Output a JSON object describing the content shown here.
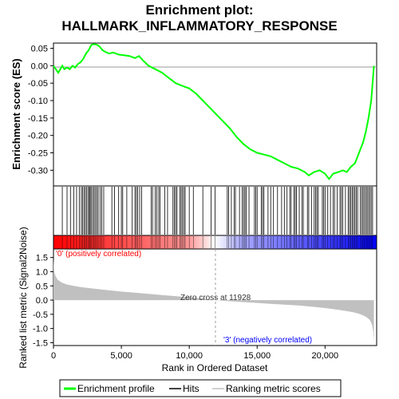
{
  "chart_data": [
    {
      "type": "line",
      "title_line1": "Enrichment plot:",
      "title_line2": "HALLMARK_INFLAMMATORY_RESPONSE",
      "ylabel": "Enrichment score (ES)",
      "ylim": [
        -0.345,
        0.065
      ],
      "xlim": [
        0,
        23800
      ],
      "yticks": [
        "0.05",
        "0.00",
        "-0.05",
        "-0.10",
        "-0.15",
        "-0.20",
        "-0.25",
        "-0.30"
      ],
      "ytick_values": [
        0.05,
        0.0,
        -0.05,
        -0.1,
        -0.15,
        -0.2,
        -0.25,
        -0.3
      ],
      "grid": false,
      "color": "#00ff00",
      "series": [
        {
          "name": "Enrichment profile",
          "x": [
            0,
            350,
            650,
            800,
            1000,
            1200,
            1400,
            1600,
            1800,
            2000,
            2200,
            2400,
            2600,
            2800,
            3000,
            3200,
            3400,
            3600,
            3800,
            4100,
            4400,
            4800,
            5200,
            5600,
            6000,
            6300,
            6600,
            7000,
            7500,
            8000,
            8500,
            9000,
            9500,
            10000,
            10500,
            11000,
            11500,
            12000,
            12500,
            13000,
            13500,
            14000,
            14500,
            15000,
            15500,
            16000,
            16500,
            17000,
            17500,
            18000,
            18500,
            18800,
            19200,
            19600,
            20000,
            20300,
            20600,
            21000,
            21300,
            21600,
            21900,
            22200,
            22500,
            22800,
            23000,
            23200,
            23400,
            23500,
            23600
          ],
          "y": [
            0.0,
            -0.02,
            0.0,
            -0.01,
            -0.005,
            -0.01,
            0.0,
            -0.005,
            0.005,
            0.01,
            0.02,
            0.035,
            0.045,
            0.06,
            0.062,
            0.06,
            0.055,
            0.045,
            0.04,
            0.035,
            0.038,
            0.032,
            0.03,
            0.028,
            0.022,
            0.028,
            0.015,
            0.0,
            -0.01,
            -0.02,
            -0.035,
            -0.05,
            -0.058,
            -0.065,
            -0.08,
            -0.1,
            -0.12,
            -0.14,
            -0.16,
            -0.18,
            -0.205,
            -0.225,
            -0.24,
            -0.25,
            -0.255,
            -0.26,
            -0.27,
            -0.28,
            -0.29,
            -0.295,
            -0.305,
            -0.315,
            -0.305,
            -0.3,
            -0.31,
            -0.325,
            -0.31,
            -0.305,
            -0.3,
            -0.305,
            -0.29,
            -0.28,
            -0.25,
            -0.22,
            -0.19,
            -0.15,
            -0.1,
            -0.05,
            0.0
          ]
        }
      ]
    },
    {
      "type": "hits",
      "series": [
        {
          "name": "Hits",
          "x": [
            650,
            1000,
            1250,
            1500,
            1700,
            1900,
            2050,
            2150,
            2250,
            2350,
            2450,
            2550,
            2650,
            2700,
            2800,
            2900,
            3000,
            3100,
            3200,
            3300,
            3450,
            3550,
            3700,
            4300,
            4500,
            4800,
            5000,
            5100,
            5400,
            5800,
            6000,
            6100,
            6200,
            6350,
            6500,
            7200,
            7300,
            7500,
            7600,
            7750,
            7850,
            8200,
            8400,
            8800,
            8900,
            9000,
            9100,
            9300,
            9400,
            9500,
            9600,
            9700,
            10000,
            10300,
            11000,
            11600,
            11900,
            12800,
            12900,
            13100,
            13300,
            13400,
            13700,
            13900,
            14000,
            14100,
            14200,
            14400,
            14800,
            14900,
            15000,
            15300,
            15400,
            15500,
            15800,
            16000,
            16200,
            16500,
            16800,
            17000,
            17200,
            17400,
            17500,
            17700,
            17800,
            17900,
            18100,
            18300,
            18400,
            18700,
            18800,
            19000,
            19200,
            19300,
            19400,
            19500,
            19800,
            19900,
            20000,
            20200,
            20400,
            20600,
            20700,
            20900,
            21100,
            21200,
            21300,
            21500,
            21700,
            21800,
            21900,
            22000,
            22100,
            22200,
            22300,
            22400,
            22600,
            22700,
            22800,
            22900,
            23000,
            23100,
            23200,
            23300,
            23400,
            23500
          ]
        }
      ]
    },
    {
      "type": "area",
      "ylabel": "Ranked list metric (Signal2Noise)",
      "xlabel": "Rank in Ordered Dataset",
      "ylim": [
        -1.6,
        1.8
      ],
      "xlim": [
        0,
        23800
      ],
      "yticks": [
        "1.5",
        "1.0",
        "0.5",
        "0.0",
        "-0.5",
        "-1.0",
        "-1.5"
      ],
      "ytick_values": [
        1.5,
        1.0,
        0.5,
        0.0,
        -0.5,
        -1.0,
        -1.5
      ],
      "xticks": [
        "0",
        "5,000",
        "10,000",
        "15,000",
        "20,000"
      ],
      "xtick_values": [
        0,
        5000,
        10000,
        15000,
        20000
      ],
      "annotation_zero_cross": "Zero cross at 11928",
      "zero_cross": 11928,
      "label_positive": "'0' (positively correlated)",
      "label_negative": "'3' (negatively correlated)",
      "series": [
        {
          "name": "Ranking metric scores",
          "x": [
            0,
            50,
            150,
            300,
            600,
            1000,
            1500,
            2000,
            3000,
            4000,
            5000,
            6000,
            7000,
            8000,
            9000,
            10000,
            11000,
            11928,
            13000,
            14000,
            15000,
            16000,
            17000,
            18000,
            19000,
            20000,
            21000,
            22000,
            22500,
            23000,
            23300,
            23450,
            23550,
            23600
          ],
          "y": [
            1.45,
            1.0,
            0.85,
            0.72,
            0.62,
            0.55,
            0.5,
            0.46,
            0.4,
            0.35,
            0.3,
            0.26,
            0.22,
            0.18,
            0.14,
            0.1,
            0.05,
            0.0,
            -0.04,
            -0.07,
            -0.1,
            -0.13,
            -0.16,
            -0.19,
            -0.23,
            -0.28,
            -0.34,
            -0.42,
            -0.48,
            -0.58,
            -0.7,
            -0.85,
            -1.1,
            -1.45
          ]
        }
      ]
    }
  ],
  "legend": {
    "items": [
      {
        "label": "Enrichment profile",
        "color": "#00ff00",
        "icon": "green-line"
      },
      {
        "label": "Hits",
        "color": "#000000",
        "icon": "black-line"
      },
      {
        "label": "Ranking metric scores",
        "color": "#c0c0c0",
        "icon": "gray-line"
      }
    ]
  },
  "colors": {
    "positive": "#ff0000",
    "negative": "#0000ff",
    "zero_line": "#a0a0a0",
    "metric_fill": "#c0c0c0",
    "positive_label": "#ff0000",
    "negative_label": "#0000ff"
  }
}
